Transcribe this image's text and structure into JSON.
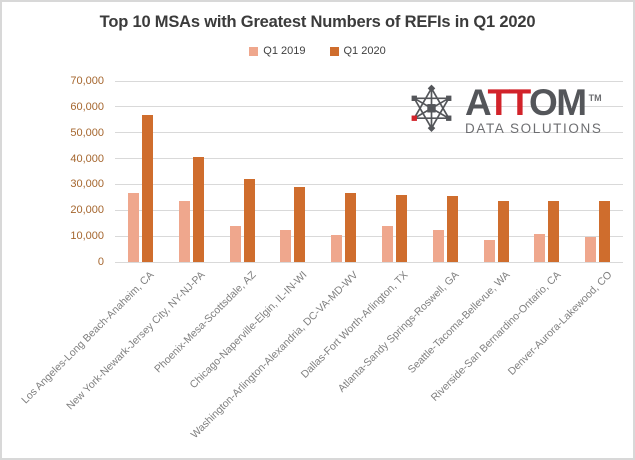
{
  "title": "Top 10 MSAs with Greatest Numbers of REFIs in Q1 2020",
  "legend": [
    {
      "label": "Q1 2019",
      "color": "#efa78d"
    },
    {
      "label": "Q1 2020",
      "color": "#cf6d2d"
    }
  ],
  "logo": {
    "name_part1": "A",
    "name_part2": "TT",
    "name_part3": "OM",
    "trademark": "TM",
    "subtitle": "DATA SOLUTIONS",
    "gray": "#54565a",
    "red": "#d2232a"
  },
  "colors": {
    "gridline": "#d9d9d9",
    "y_axis_labels": "#a5662e",
    "x_axis_labels": "#7f7f7f",
    "title_text": "#3b3b3b"
  },
  "chart_data": {
    "type": "bar",
    "title": "Top 10 MSAs with Greatest Numbers of REFIs in Q1 2020",
    "categories": [
      "Los Angeles-Long Beach-Anaheim, CA",
      "New York-Newark-Jersey City, NY-NJ-PA",
      "Phoenix-Mesa-Scottsdale, AZ",
      "Chicago-Naperville-Elgin, IL-IN-WI",
      "Washington-Arlington-Alexandria, DC-VA-MD-WV",
      "Dallas-Fort Worth-Arlington, TX",
      "Atlanta-Sandy Springs-Roswell, GA",
      "Seattle-Tacoma-Bellevue, WA",
      "Riverside-San Bernardino-Ontario, CA",
      "Denver-Aurora-Lakewood, CO"
    ],
    "series": [
      {
        "name": "Q1 2019",
        "color": "#efa78d",
        "values": [
          26500,
          23500,
          14000,
          12500,
          10500,
          14000,
          12500,
          8500,
          11000,
          9500
        ]
      },
      {
        "name": "Q1 2020",
        "color": "#cf6d2d",
        "values": [
          57000,
          40500,
          32000,
          29000,
          26500,
          26000,
          25500,
          23500,
          23500,
          23500
        ]
      }
    ],
    "xlabel": "",
    "ylabel": "",
    "ylim": [
      0,
      70000
    ],
    "ytick_step": 10000,
    "ytick_labels": [
      "70,000",
      "60,000",
      "50,000",
      "40,000",
      "30,000",
      "20,000",
      "10,000",
      "0"
    ],
    "grid": "horizontal",
    "legend_position": "top",
    "x_label_rotation_deg": 45
  }
}
